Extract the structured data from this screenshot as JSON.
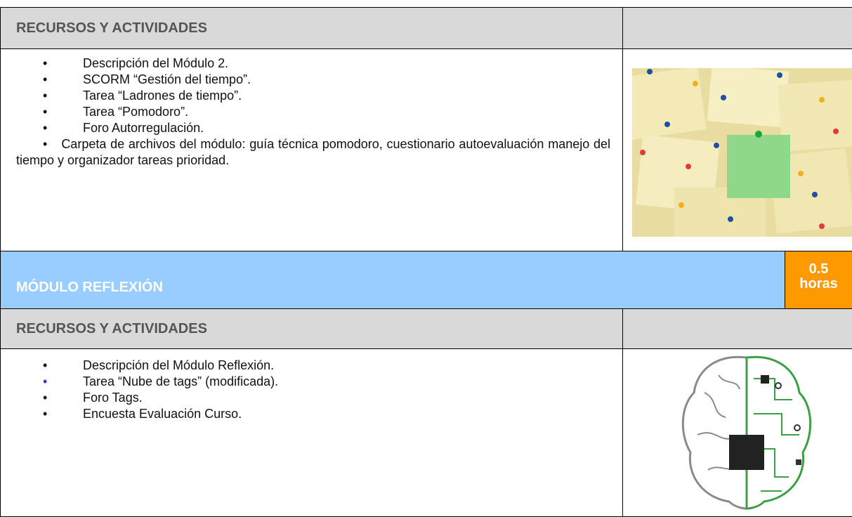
{
  "sections": [
    {
      "header": "RECURSOS Y ACTIVIDADES",
      "items": [
        "Descripción del Módulo 2.",
        "SCORM “Gestión del tiempo”.",
        "Tarea “Ladrones de tiempo”.",
        "Tarea “Pomodoro”.",
        "Foro Autorregulación.",
        "Carpeta de archivos del módulo: guía técnica pomodoro, cuestionario autoevaluación manejo del tiempo y organizador tareas prioridad."
      ]
    },
    {
      "header": "RECURSOS Y ACTIVIDADES",
      "items": [
        "Descripción del Módulo Reflexión.",
        "Tarea “Nube de tags” (modificada).",
        "Foro Tags.",
        "Encuesta Evaluación Curso."
      ]
    }
  ],
  "module": {
    "title": "MÓDULO REFLEXIÓN",
    "hours_value": "0.5",
    "hours_unit": "horas"
  }
}
